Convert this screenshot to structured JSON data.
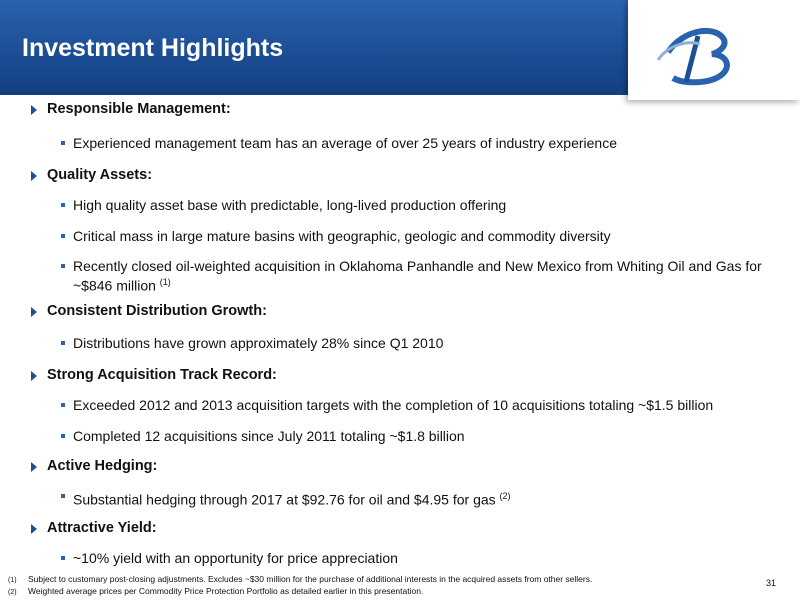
{
  "header": {
    "title": "Investment Highlights"
  },
  "sections": [
    {
      "heading": "Responsible Management:",
      "bullets": [
        {
          "text": "Experienced management team has an average of over 25 years of industry experience"
        }
      ]
    },
    {
      "heading": "Quality Assets:",
      "bullets": [
        {
          "text": "High quality asset base with predictable, long-lived production offering"
        },
        {
          "text": "Critical mass in large mature basins with geographic, geologic and commodity diversity"
        },
        {
          "text": "Recently closed oil-weighted acquisition in Oklahoma Panhandle and New Mexico from Whiting Oil and Gas for ~$846 million",
          "note": "(1)"
        }
      ]
    },
    {
      "heading": "Consistent Distribution Growth:",
      "bullets": [
        {
          "text": "Distributions have grown approximately 28% since Q1 2010"
        }
      ]
    },
    {
      "heading": "Strong Acquisition Track Record:",
      "bullets": [
        {
          "text": "Exceeded 2012 and 2013 acquisition targets with the completion of 10 acquisitions totaling ~$1.5 billion"
        },
        {
          "text": "Completed 12 acquisitions since July 2011 totaling ~$1.8 billion"
        }
      ]
    },
    {
      "heading": "Active Hedging:",
      "bullets": [
        {
          "text": "Substantial hedging through 2017 at $92.76 for oil and $4.95 for gas",
          "note": "(2)"
        }
      ]
    },
    {
      "heading": "Attractive Yield:",
      "bullets": [
        {
          "text": "~10% yield with an opportunity for price appreciation"
        }
      ]
    }
  ],
  "footnotes": [
    {
      "marker": "(1)",
      "text": "Subject to customary post-closing adjustments. Excludes ~$30 million for the purchase of additional interests in the acquired assets from other sellers."
    },
    {
      "marker": "(2)",
      "text": "Weighted average prices per Commodity Price Protection Portfolio as detailed earlier in this presentation."
    }
  ],
  "page_number": "31"
}
